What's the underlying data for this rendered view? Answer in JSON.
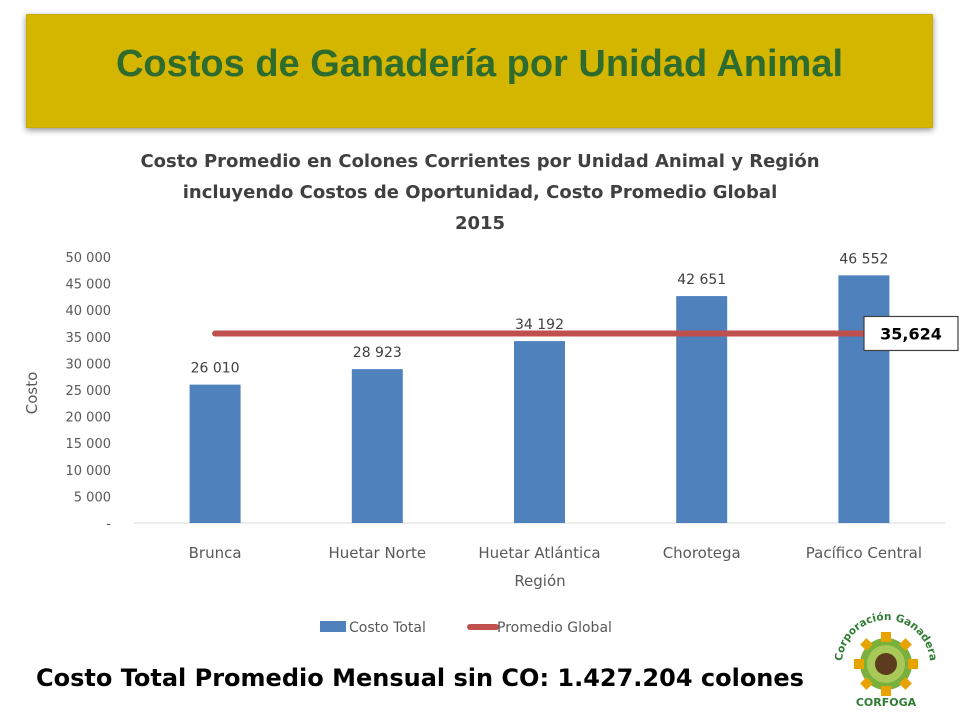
{
  "header": {
    "title": "Costos de Ganadería por Unidad Animal"
  },
  "chart_data": {
    "type": "bar",
    "title_lines": [
      "Costo Promedio en Colones Corrientes por Unidad Animal y Región",
      "incluyendo Costos de Oportunidad, Costo Promedio Global",
      "2015"
    ],
    "xlabel": "Región",
    "ylabel": "Costo",
    "ylim": [
      0,
      50000
    ],
    "yticks": [
      0,
      5000,
      10000,
      15000,
      20000,
      25000,
      30000,
      35000,
      40000,
      45000,
      50000
    ],
    "ytick_labels": [
      "-",
      "5 000",
      "10 000",
      "15 000",
      "20 000",
      "25 000",
      "30 000",
      "35 000",
      "40 000",
      "45 000",
      "50 000"
    ],
    "categories": [
      "Brunca",
      "Huetar Norte",
      "Huetar Atlántica",
      "Chorotega",
      "Pacífico Central"
    ],
    "series": [
      {
        "name": "Costo Total",
        "type": "bar",
        "color": "#4f81bd",
        "values": [
          26010,
          28923,
          34192,
          42651,
          46552
        ],
        "labels": [
          "26 010",
          "28 923",
          "34 192",
          "42 651",
          "46 552"
        ]
      },
      {
        "name": "Promedio Global",
        "type": "line",
        "color": "#c0504d",
        "value": 35624,
        "label": "35,624"
      }
    ],
    "legend": "bottom",
    "grid": false
  },
  "footer": {
    "note": "Costo Total Promedio Mensual sin CO: 1.427.204 colones"
  },
  "logo": {
    "text_top": "Corporación Ganadera",
    "text_bottom": "CORFOGA"
  }
}
